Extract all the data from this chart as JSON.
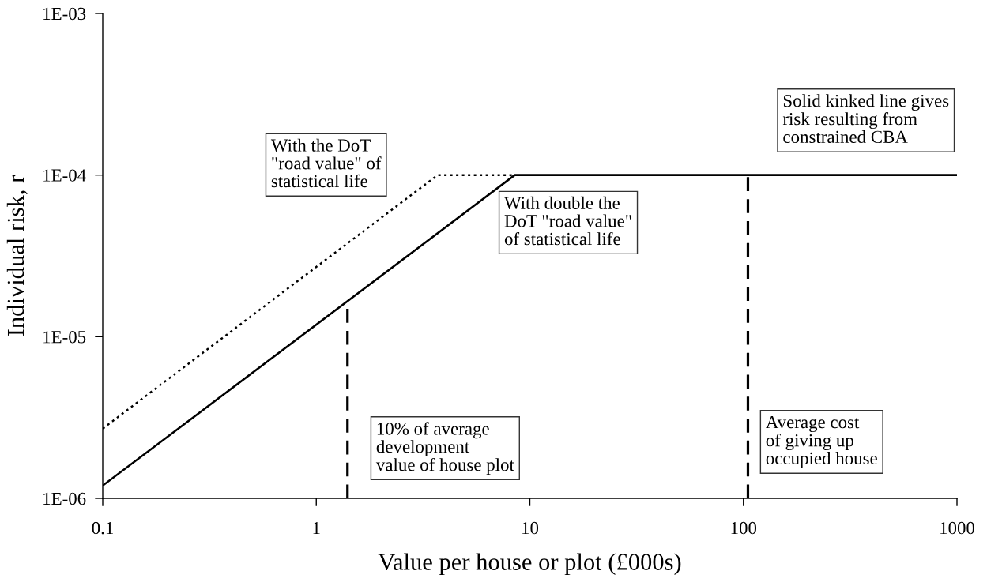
{
  "chart_data": {
    "type": "line",
    "xlabel": "Value per house or plot (£000s)",
    "ylabel": "Individual risk, r",
    "log": "xy",
    "xlim": [
      0.1,
      1000
    ],
    "xticks": [
      0.1,
      1,
      10,
      100,
      1000
    ],
    "ylim": [
      1e-06,
      0.001
    ],
    "yticks": [
      {
        "value": 1e-06,
        "label": "1E-06"
      },
      {
        "value": 1e-05,
        "label": "1E-05"
      },
      {
        "value": 0.0001,
        "label": "1E-04"
      },
      {
        "value": 0.001,
        "label": "1E-03"
      }
    ],
    "series": [
      {
        "color": "#000000",
        "line_style": "solid",
        "x": [
          0.1,
          8.5,
          1000
        ],
        "values": [
          1.2e-06,
          0.0001,
          0.0001
        ]
      },
      {
        "color": "#000000",
        "line_style": "dotted",
        "x": [
          0.1,
          3.7,
          8.5
        ],
        "values": [
          2.7e-06,
          0.0001,
          0.0001
        ]
      },
      {
        "color": "#000000",
        "line_style": "dashed",
        "x": [
          1.4,
          1.4
        ],
        "values": [
          1e-06,
          1.65e-05
        ]
      },
      {
        "color": "#000000",
        "line_style": "dashed",
        "x": [
          105,
          105
        ],
        "values": [
          1e-06,
          0.0001
        ]
      }
    ],
    "annotations": [
      "With the DoT\n\"road value\" of\nstatistical life",
      "With double the\nDoT \"road value\"\nof statistical life",
      "10% of average\ndevelopment\nvalue of house plot",
      "Average cost\nof giving up\noccupied house",
      "Solid kinked line gives\nrisk resulting from\nconstrained CBA"
    ]
  }
}
